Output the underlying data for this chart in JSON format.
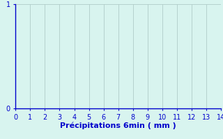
{
  "title": "",
  "xlabel": "Précipitations 6min ( mm )",
  "ylabel": "",
  "xlim": [
    0,
    14
  ],
  "ylim": [
    0,
    1
  ],
  "xticks": [
    0,
    1,
    2,
    3,
    4,
    5,
    6,
    7,
    8,
    9,
    10,
    11,
    12,
    13,
    14
  ],
  "yticks": [
    0,
    1
  ],
  "background_color": "#d8f4ef",
  "grid_color": "#b0ccc8",
  "axis_color": "#0000cc",
  "tick_label_color": "#0000cc",
  "xlabel_color": "#0000cc",
  "xlabel_fontsize": 8,
  "tick_fontsize": 7
}
